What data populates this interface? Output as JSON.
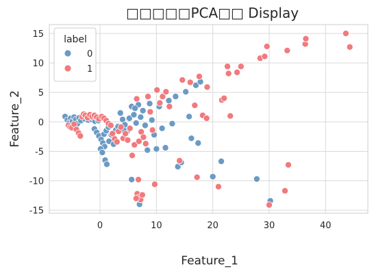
{
  "chart_data": {
    "type": "scatter",
    "title": "□□□□□PCA□□ Display",
    "xlabel": "Feature_1",
    "ylabel": "Feature_2",
    "xlim": [
      -9,
      47.5
    ],
    "ylim": [
      -15.5,
      16.5
    ],
    "xticks": [
      0,
      10,
      20,
      30,
      40
    ],
    "yticks": [
      -15,
      -10,
      -5,
      0,
      5,
      10,
      15
    ],
    "grid": true,
    "legend": {
      "title": "label",
      "placement": "top-left",
      "entries": [
        "0",
        "1"
      ]
    },
    "series": [
      {
        "name": "0",
        "color": "#6b9ac4",
        "points": [
          [
            -6.2,
            0.9
          ],
          [
            -5.8,
            0.3
          ],
          [
            -5.5,
            -0.2
          ],
          [
            -5.2,
            0.6
          ],
          [
            -4.9,
            0.1
          ],
          [
            -4.6,
            0.8
          ],
          [
            -4.3,
            0.4
          ],
          [
            -4.0,
            -0.3
          ],
          [
            -3.7,
            0.7
          ],
          [
            -3.4,
            0.2
          ],
          [
            -3.0,
            1.0
          ],
          [
            -2.7,
            0.5
          ],
          [
            -2.4,
            0.9
          ],
          [
            -2.1,
            0.3
          ],
          [
            -1.8,
            0.8
          ],
          [
            -1.5,
            0.4
          ],
          [
            -1.2,
            0.6
          ],
          [
            -0.9,
            0.1
          ],
          [
            -0.6,
            0.7
          ],
          [
            -0.3,
            0.2
          ],
          [
            -1.0,
            -1.2
          ],
          [
            -0.6,
            -1.8
          ],
          [
            -0.2,
            -2.4
          ],
          [
            0.2,
            -3.0
          ],
          [
            0.5,
            -3.6
          ],
          [
            0.8,
            -4.2
          ],
          [
            0.1,
            -4.6
          ],
          [
            0.4,
            -5.2
          ],
          [
            0.9,
            -6.5
          ],
          [
            1.2,
            -7.2
          ],
          [
            0.7,
            -2.1
          ],
          [
            1.1,
            -1.5
          ],
          [
            1.5,
            -0.9
          ],
          [
            2.0,
            -2.2
          ],
          [
            1.6,
            -3.3
          ],
          [
            2.4,
            -3.8
          ],
          [
            2.8,
            -1.4
          ],
          [
            3.2,
            -0.8
          ],
          [
            3.6,
            1.5
          ],
          [
            4.0,
            0.4
          ],
          [
            4.4,
            -0.5
          ],
          [
            4.8,
            -1.6
          ],
          [
            5.2,
            0.6
          ],
          [
            5.6,
            2.6
          ],
          [
            6.0,
            1.2
          ],
          [
            6.4,
            -0.2
          ],
          [
            6.8,
            2.9
          ],
          [
            7.2,
            0.8
          ],
          [
            7.6,
            1.9
          ],
          [
            8.0,
            -0.6
          ],
          [
            8.4,
            -4.8
          ],
          [
            8.8,
            3.1
          ],
          [
            9.2,
            0.3
          ],
          [
            9.6,
            -2.2
          ],
          [
            10.0,
            -4.6
          ],
          [
            10.5,
            2.6
          ],
          [
            11.0,
            -1.1
          ],
          [
            11.6,
            -4.4
          ],
          [
            12.2,
            3.6
          ],
          [
            12.8,
            -0.3
          ],
          [
            13.4,
            4.3
          ],
          [
            13.8,
            -7.6
          ],
          [
            14.4,
            -6.9
          ],
          [
            15.2,
            5.1
          ],
          [
            15.8,
            0.9
          ],
          [
            16.2,
            -2.8
          ],
          [
            17.0,
            6.2
          ],
          [
            17.4,
            -3.6
          ],
          [
            17.8,
            6.8
          ],
          [
            20.0,
            -9.3
          ],
          [
            21.5,
            -6.7
          ],
          [
            27.8,
            -9.7
          ],
          [
            30.2,
            -13.4
          ],
          [
            5.6,
            -9.8
          ],
          [
            7.0,
            -14.0
          ],
          [
            6.2,
            2.3
          ],
          [
            4.2,
            -1.4
          ]
        ]
      },
      {
        "name": "1",
        "color": "#f07a7d",
        "points": [
          [
            -5.6,
            -0.6
          ],
          [
            -5.3,
            -0.9
          ],
          [
            -5.0,
            -1.0
          ],
          [
            -4.6,
            -0.4
          ],
          [
            -4.2,
            -1.3
          ],
          [
            -3.8,
            -1.9
          ],
          [
            -3.5,
            -2.4
          ],
          [
            -3.2,
            0.9
          ],
          [
            -2.9,
            1.3
          ],
          [
            -2.6,
            1.1
          ],
          [
            -2.2,
            0.7
          ],
          [
            -1.8,
            1.2
          ],
          [
            -1.4,
            0.9
          ],
          [
            -1.0,
            1.1
          ],
          [
            -0.6,
            0.8
          ],
          [
            -0.2,
            0.5
          ],
          [
            0.3,
            0.9
          ],
          [
            0.7,
            0.6
          ],
          [
            1.1,
            0.2
          ],
          [
            1.5,
            -0.3
          ],
          [
            1.9,
            -0.6
          ],
          [
            2.2,
            -2.0
          ],
          [
            2.6,
            -2.9
          ],
          [
            3.0,
            -3.4
          ],
          [
            3.3,
            -1.6
          ],
          [
            3.7,
            -0.9
          ],
          [
            4.1,
            -2.8
          ],
          [
            4.5,
            -2.0
          ],
          [
            4.9,
            -3.1
          ],
          [
            5.3,
            -1.1
          ],
          [
            5.7,
            -5.7
          ],
          [
            6.1,
            -3.9
          ],
          [
            6.5,
            3.9
          ],
          [
            6.9,
            -3.3
          ],
          [
            7.3,
            -1.7
          ],
          [
            7.7,
            -2.6
          ],
          [
            8.1,
            -3.7
          ],
          [
            8.5,
            4.3
          ],
          [
            8.9,
            1.7
          ],
          [
            9.3,
            -1.4
          ],
          [
            9.7,
            -10.6
          ],
          [
            10.1,
            5.4
          ],
          [
            10.6,
            3.2
          ],
          [
            11.1,
            4.3
          ],
          [
            11.7,
            5.1
          ],
          [
            12.3,
            2.6
          ],
          [
            14.6,
            7.1
          ],
          [
            14.1,
            -6.6
          ],
          [
            16.0,
            6.7
          ],
          [
            17.6,
            7.7
          ],
          [
            18.2,
            1.1
          ],
          [
            18.9,
            0.6
          ],
          [
            17.2,
            -9.4
          ],
          [
            21.0,
            -11.0
          ],
          [
            21.6,
            3.7
          ],
          [
            22.0,
            4.0
          ],
          [
            22.6,
            9.4
          ],
          [
            22.8,
            8.2
          ],
          [
            23.1,
            1.0
          ],
          [
            24.3,
            8.4
          ],
          [
            25.0,
            9.4
          ],
          [
            28.4,
            10.8
          ],
          [
            29.2,
            11.1
          ],
          [
            29.6,
            12.8
          ],
          [
            32.8,
            -11.7
          ],
          [
            33.2,
            12.1
          ],
          [
            33.4,
            -7.3
          ],
          [
            36.4,
            13.2
          ],
          [
            36.5,
            14.1
          ],
          [
            43.6,
            15.0
          ],
          [
            44.3,
            12.7
          ],
          [
            30.0,
            -14.1
          ],
          [
            6.6,
            -12.2
          ],
          [
            6.9,
            -12.8
          ],
          [
            7.2,
            -13.2
          ],
          [
            6.4,
            -13.0
          ],
          [
            7.5,
            -12.4
          ],
          [
            6.8,
            -9.8
          ],
          [
            16.8,
            2.8
          ],
          [
            19.0,
            5.9
          ]
        ]
      }
    ]
  }
}
